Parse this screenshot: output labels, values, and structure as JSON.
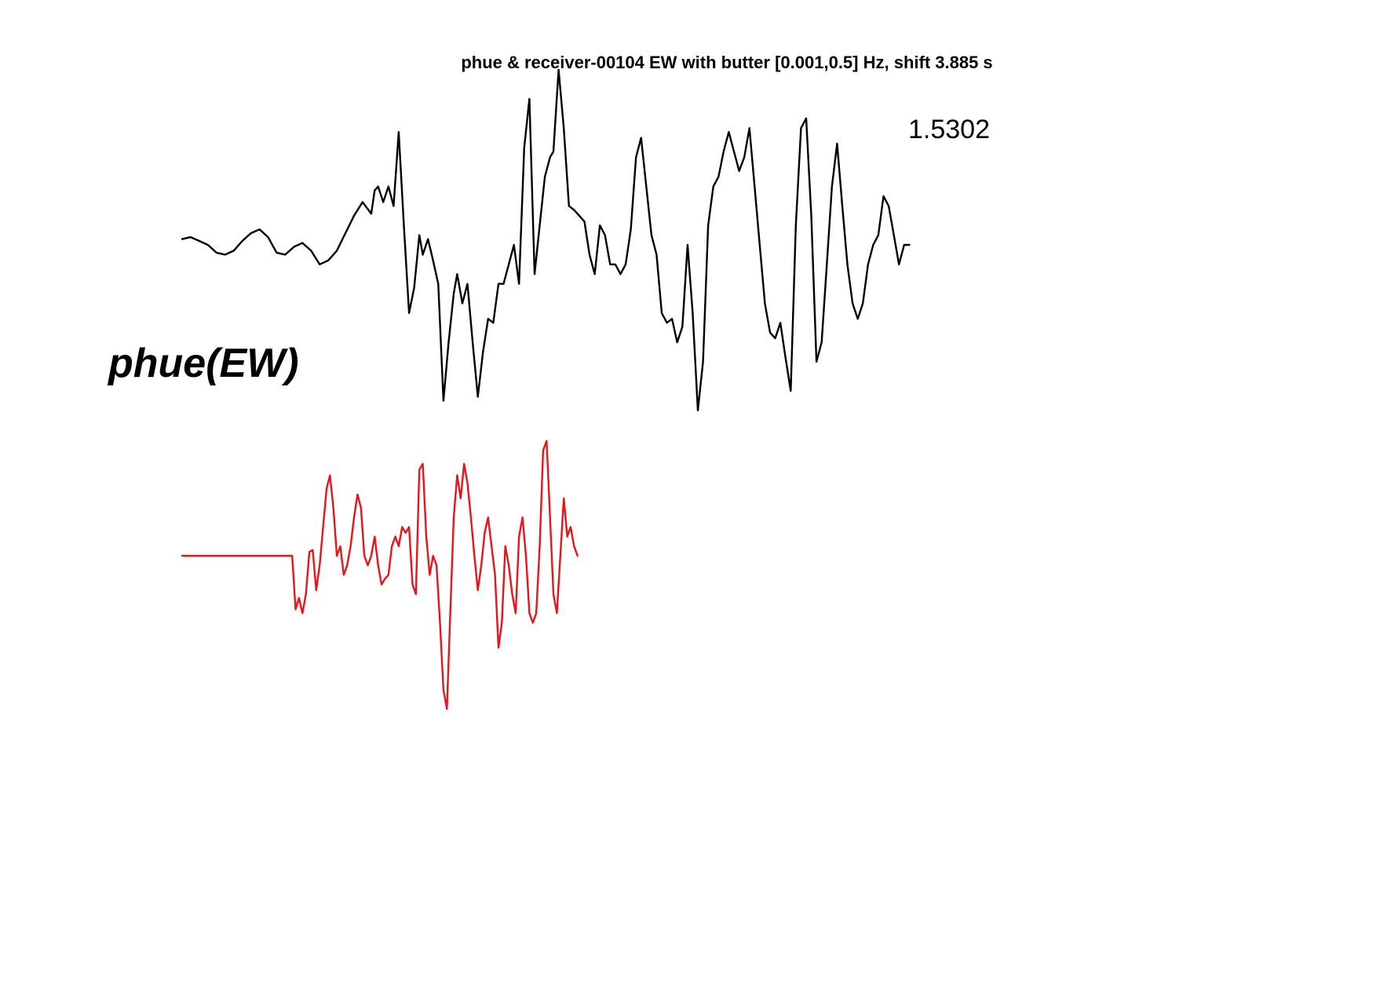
{
  "chart_data": {
    "type": "line",
    "title": "phue & receiver-00104 EW with butter [0.001,0.5] Hz, shift 3.885 s",
    "xlabel": "",
    "ylabel": "",
    "grid": false,
    "amplitude_label": "1.5302",
    "station_label": "phue(EW)",
    "series": [
      {
        "color": "#000000",
        "points": [
          [
            0,
            0.03
          ],
          [
            0.5,
            0.04
          ],
          [
            1,
            0.02
          ],
          [
            1.5,
            0.0
          ],
          [
            2,
            -0.04
          ],
          [
            2.5,
            -0.05
          ],
          [
            3,
            -0.03
          ],
          [
            3.5,
            0.02
          ],
          [
            4,
            0.06
          ],
          [
            4.5,
            0.08
          ],
          [
            5,
            0.04
          ],
          [
            5.5,
            -0.04
          ],
          [
            6,
            -0.05
          ],
          [
            6.5,
            -0.01
          ],
          [
            7,
            0.01
          ],
          [
            7.5,
            -0.03
          ],
          [
            8,
            -0.1
          ],
          [
            8.5,
            -0.08
          ],
          [
            9,
            -0.03
          ],
          [
            9.5,
            0.06
          ],
          [
            10,
            0.15
          ],
          [
            10.5,
            0.22
          ],
          [
            11,
            0.16
          ],
          [
            11.2,
            0.28
          ],
          [
            11.4,
            0.3
          ],
          [
            11.7,
            0.22
          ],
          [
            12.0,
            0.3
          ],
          [
            12.3,
            0.2
          ],
          [
            12.6,
            0.58
          ],
          [
            12.9,
            0.1
          ],
          [
            13.2,
            -0.35
          ],
          [
            13.5,
            -0.22
          ],
          [
            13.8,
            0.05
          ],
          [
            14.0,
            -0.05
          ],
          [
            14.3,
            0.03
          ],
          [
            14.6,
            -0.08
          ],
          [
            14.9,
            -0.2
          ],
          [
            15.2,
            -0.8
          ],
          [
            15.5,
            -0.5
          ],
          [
            15.8,
            -0.25
          ],
          [
            16.0,
            -0.15
          ],
          [
            16.3,
            -0.3
          ],
          [
            16.6,
            -0.2
          ],
          [
            16.9,
            -0.5
          ],
          [
            17.2,
            -0.78
          ],
          [
            17.5,
            -0.55
          ],
          [
            17.8,
            -0.38
          ],
          [
            18.1,
            -0.4
          ],
          [
            18.4,
            -0.2
          ],
          [
            18.7,
            -0.2
          ],
          [
            19.0,
            -0.1
          ],
          [
            19.3,
            0.0
          ],
          [
            19.6,
            -0.2
          ],
          [
            19.9,
            0.5
          ],
          [
            20.2,
            0.75
          ],
          [
            20.5,
            -0.15
          ],
          [
            20.8,
            0.1
          ],
          [
            21.1,
            0.35
          ],
          [
            21.4,
            0.45
          ],
          [
            21.6,
            0.48
          ],
          [
            21.9,
            0.9
          ],
          [
            22.2,
            0.6
          ],
          [
            22.5,
            0.2
          ],
          [
            22.8,
            0.18
          ],
          [
            23.1,
            0.15
          ],
          [
            23.4,
            0.12
          ],
          [
            23.7,
            -0.05
          ],
          [
            24.0,
            -0.15
          ],
          [
            24.3,
            0.1
          ],
          [
            24.6,
            0.05
          ],
          [
            24.9,
            -0.1
          ],
          [
            25.2,
            -0.1
          ],
          [
            25.5,
            -0.15
          ],
          [
            25.8,
            -0.1
          ],
          [
            26.1,
            0.08
          ],
          [
            26.4,
            0.45
          ],
          [
            26.7,
            0.55
          ],
          [
            27.0,
            0.3
          ],
          [
            27.3,
            0.05
          ],
          [
            27.6,
            -0.05
          ],
          [
            27.9,
            -0.35
          ],
          [
            28.2,
            -0.4
          ],
          [
            28.5,
            -0.38
          ],
          [
            28.8,
            -0.5
          ],
          [
            29.1,
            -0.42
          ],
          [
            29.4,
            0.0
          ],
          [
            29.7,
            -0.35
          ],
          [
            30.0,
            -0.85
          ],
          [
            30.3,
            -0.6
          ],
          [
            30.6,
            0.1
          ],
          [
            30.9,
            0.3
          ],
          [
            31.2,
            0.35
          ],
          [
            31.5,
            0.48
          ],
          [
            31.8,
            0.58
          ],
          [
            32.1,
            0.48
          ],
          [
            32.4,
            0.38
          ],
          [
            32.7,
            0.45
          ],
          [
            33.0,
            0.6
          ],
          [
            33.3,
            0.3
          ],
          [
            33.6,
            0.0
          ],
          [
            33.9,
            -0.3
          ],
          [
            34.2,
            -0.45
          ],
          [
            34.5,
            -0.48
          ],
          [
            34.8,
            -0.4
          ],
          [
            35.1,
            -0.58
          ],
          [
            35.4,
            -0.75
          ],
          [
            35.7,
            0.1
          ],
          [
            36.0,
            0.6
          ],
          [
            36.3,
            0.65
          ],
          [
            36.6,
            0.15
          ],
          [
            36.9,
            -0.6
          ],
          [
            37.2,
            -0.5
          ],
          [
            37.5,
            -0.1
          ],
          [
            37.8,
            0.3
          ],
          [
            38.1,
            0.52
          ],
          [
            38.4,
            0.2
          ],
          [
            38.7,
            -0.1
          ],
          [
            39.0,
            -0.3
          ],
          [
            39.3,
            -0.38
          ],
          [
            39.6,
            -0.3
          ],
          [
            39.9,
            -0.1
          ],
          [
            40.2,
            0.0
          ],
          [
            40.5,
            0.05
          ],
          [
            40.8,
            0.25
          ],
          [
            41.1,
            0.2
          ],
          [
            41.4,
            0.05
          ],
          [
            41.7,
            -0.1
          ],
          [
            42.0,
            0.0
          ],
          [
            42.3,
            0.0
          ]
        ]
      },
      {
        "color": "#e8141a",
        "points": [
          [
            0,
            0.0
          ],
          [
            1,
            0.0
          ],
          [
            2,
            0.0
          ],
          [
            3,
            0.0
          ],
          [
            4,
            0.0
          ],
          [
            5,
            0.0
          ],
          [
            6,
            0.0
          ],
          [
            6.4,
            0.0
          ],
          [
            6.6,
            -0.28
          ],
          [
            6.8,
            -0.22
          ],
          [
            7.0,
            -0.3
          ],
          [
            7.2,
            -0.2
          ],
          [
            7.4,
            0.02
          ],
          [
            7.6,
            0.03
          ],
          [
            7.8,
            -0.18
          ],
          [
            8.0,
            -0.05
          ],
          [
            8.2,
            0.15
          ],
          [
            8.4,
            0.35
          ],
          [
            8.6,
            0.42
          ],
          [
            8.8,
            0.25
          ],
          [
            9.0,
            0.0
          ],
          [
            9.2,
            0.05
          ],
          [
            9.4,
            -0.1
          ],
          [
            9.6,
            -0.05
          ],
          [
            9.8,
            0.05
          ],
          [
            10.0,
            0.2
          ],
          [
            10.2,
            0.32
          ],
          [
            10.4,
            0.25
          ],
          [
            10.6,
            0.0
          ],
          [
            10.8,
            -0.05
          ],
          [
            11.0,
            0.0
          ],
          [
            11.2,
            0.1
          ],
          [
            11.4,
            -0.05
          ],
          [
            11.6,
            -0.15
          ],
          [
            11.8,
            -0.12
          ],
          [
            12.0,
            -0.1
          ],
          [
            12.2,
            0.05
          ],
          [
            12.4,
            0.1
          ],
          [
            12.6,
            0.05
          ],
          [
            12.8,
            0.15
          ],
          [
            13.0,
            0.12
          ],
          [
            13.2,
            0.15
          ],
          [
            13.4,
            -0.15
          ],
          [
            13.6,
            -0.2
          ],
          [
            13.8,
            0.45
          ],
          [
            14.0,
            0.48
          ],
          [
            14.2,
            0.1
          ],
          [
            14.4,
            -0.1
          ],
          [
            14.6,
            0.0
          ],
          [
            14.8,
            -0.05
          ],
          [
            15.0,
            -0.35
          ],
          [
            15.2,
            -0.7
          ],
          [
            15.4,
            -0.8
          ],
          [
            15.6,
            -0.3
          ],
          [
            15.8,
            0.2
          ],
          [
            16.0,
            0.42
          ],
          [
            16.2,
            0.3
          ],
          [
            16.4,
            0.48
          ],
          [
            16.6,
            0.38
          ],
          [
            16.8,
            0.2
          ],
          [
            17.0,
            0.0
          ],
          [
            17.2,
            -0.18
          ],
          [
            17.4,
            -0.05
          ],
          [
            17.6,
            0.12
          ],
          [
            17.8,
            0.2
          ],
          [
            18.0,
            0.05
          ],
          [
            18.2,
            -0.1
          ],
          [
            18.4,
            -0.48
          ],
          [
            18.6,
            -0.35
          ],
          [
            18.8,
            0.05
          ],
          [
            19.0,
            -0.05
          ],
          [
            19.2,
            -0.2
          ],
          [
            19.4,
            -0.3
          ],
          [
            19.6,
            0.1
          ],
          [
            19.8,
            0.2
          ],
          [
            20.0,
            0.0
          ],
          [
            20.2,
            -0.3
          ],
          [
            20.4,
            -0.35
          ],
          [
            20.6,
            -0.3
          ],
          [
            20.8,
            0.05
          ],
          [
            21.0,
            0.55
          ],
          [
            21.2,
            0.6
          ],
          [
            21.4,
            0.2
          ],
          [
            21.6,
            -0.2
          ],
          [
            21.8,
            -0.3
          ],
          [
            22.0,
            0.0
          ],
          [
            22.2,
            0.3
          ],
          [
            22.4,
            0.1
          ],
          [
            22.6,
            0.15
          ],
          [
            22.8,
            0.05
          ],
          [
            23.0,
            0.0
          ]
        ]
      }
    ]
  }
}
